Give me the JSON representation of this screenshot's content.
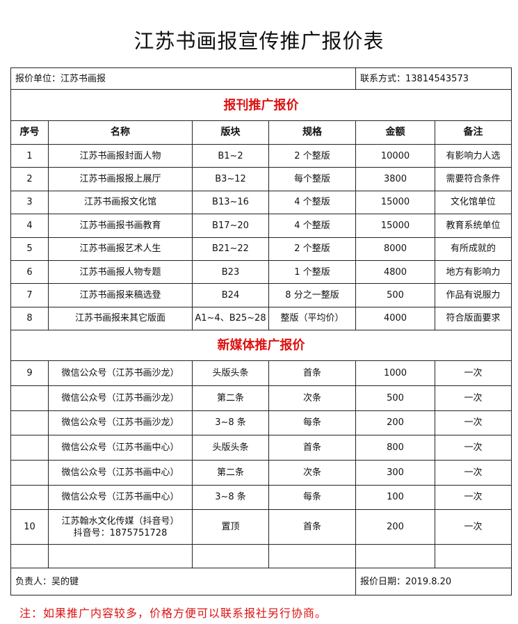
{
  "title": "江苏书画报宣传推广报价表",
  "unit": "报价单位：江苏书画报",
  "contact": "联系方式：13814543573",
  "section1": "报刊推广报价",
  "headers": [
    "序号",
    "名称",
    "版块",
    "规格",
    "金额",
    "备注"
  ],
  "print_rows": [
    [
      "1",
      "江苏书画报封面人物",
      "B1~2",
      "2 个整版",
      "10000",
      "有影响力人选"
    ],
    [
      "2",
      "江苏书画报报上展厅",
      "B3~12",
      "每个整版",
      "3800",
      "需要符合条件"
    ],
    [
      "3",
      "江苏书画报文化馆",
      "B13~16",
      "4 个整版",
      "15000",
      "文化馆单位"
    ],
    [
      "4",
      "江苏书画报书画教育",
      "B17~20",
      "4 个整版",
      "15000",
      "教育系统单位"
    ],
    [
      "5",
      "江苏书画报艺术人生",
      "B21~22",
      "2 个整版",
      "8000",
      "有所成就的"
    ],
    [
      "6",
      "江苏书画报人物专题",
      "B23",
      "1 个整版",
      "4800",
      "地方有影响力"
    ],
    [
      "7",
      "江苏书画报来稿选登",
      "B24",
      "8 分之一整版",
      "500",
      "作品有说服力"
    ],
    [
      "8",
      "江苏书画报来其它版面",
      "A1~4、B25~28",
      "整版（平均价）",
      "4000",
      "符合版面要求"
    ]
  ],
  "section2": "新媒体推广报价",
  "media_rows": [
    [
      "9",
      "微信公众号（江苏书画沙龙）",
      "头版头条",
      "首条",
      "1000",
      "一次"
    ],
    [
      "",
      "微信公众号（江苏书画沙龙）",
      "第二条",
      "次条",
      "500",
      "一次"
    ],
    [
      "",
      "微信公众号（江苏书画沙龙）",
      "3~8 条",
      "每条",
      "200",
      "一次"
    ],
    [
      "",
      "微信公众号（江苏书画中心）",
      "头版头条",
      "首条",
      "800",
      "一次"
    ],
    [
      "",
      "微信公众号（江苏书画中心）",
      "第二条",
      "次条",
      "300",
      "一次"
    ],
    [
      "",
      "微信公众号（江苏书画中心）",
      "3~8 条",
      "每条",
      "100",
      "一次"
    ]
  ],
  "douyin": {
    "no": "10",
    "name1": "江苏翰水文化传媒（抖音号）",
    "name2": "抖音号：1875751728",
    "block": "置顶",
    "spec": "首条",
    "price": "200",
    "note": "一次"
  },
  "manager": "负责人：吴的键",
  "date": "报价日期：2019.8.20",
  "note": "注：如果推广内容较多，价格方便可以联系报社另行协商。"
}
